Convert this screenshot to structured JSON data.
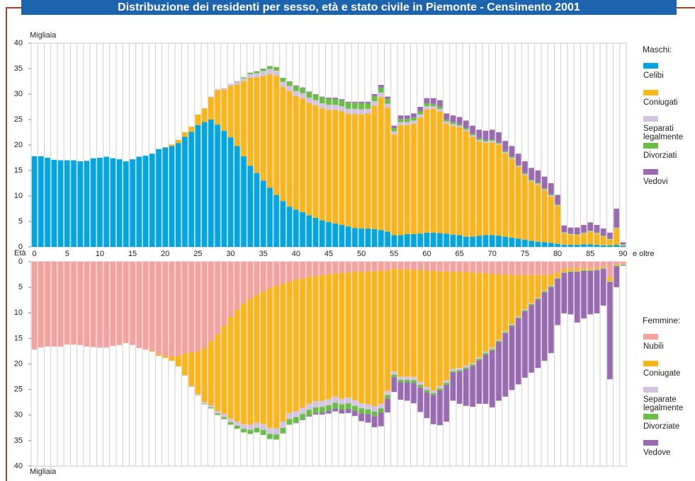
{
  "chart_data": [
    {
      "type": "bar",
      "stacked": true,
      "title": "Distribuzione dei residenti per sesso, età e stato civile in Piemonte - Censimento 2001",
      "y_label": "Migliaia",
      "x_label": "Età",
      "x_label_end": "e oltre",
      "legend_title": "Maschi:",
      "categories": [
        0,
        null,
        null,
        null,
        null,
        5,
        null,
        null,
        null,
        null,
        10,
        null,
        null,
        null,
        null,
        15,
        null,
        null,
        null,
        null,
        20,
        null,
        null,
        null,
        null,
        25,
        null,
        null,
        null,
        null,
        30,
        null,
        null,
        null,
        null,
        35,
        null,
        null,
        null,
        null,
        40,
        null,
        null,
        null,
        null,
        45,
        null,
        null,
        null,
        null,
        50,
        null,
        null,
        null,
        null,
        55,
        null,
        null,
        null,
        null,
        60,
        null,
        null,
        null,
        null,
        65,
        null,
        null,
        null,
        null,
        70,
        null,
        null,
        null,
        null,
        75,
        null,
        null,
        null,
        null,
        80,
        null,
        null,
        null,
        null,
        85,
        null,
        null,
        null,
        null,
        90
      ],
      "ylim": [
        0,
        40
      ],
      "yticks": [
        0,
        5,
        10,
        15,
        20,
        25,
        30,
        35,
        40
      ],
      "y_inverted": false,
      "series": [
        {
          "name": "Celibi",
          "color": "#00a6e0",
          "values": [
            17.8,
            17.8,
            17.5,
            17.1,
            17.0,
            17.0,
            17.0,
            16.8,
            16.9,
            17.4,
            17.5,
            17.7,
            17.4,
            17.2,
            16.8,
            17.2,
            17.7,
            17.9,
            18.3,
            19.2,
            19.5,
            19.8,
            20.4,
            21.6,
            22.6,
            23.9,
            24.5,
            25.0,
            24.0,
            22.8,
            21.5,
            19.8,
            17.8,
            15.9,
            14.5,
            13.0,
            11.6,
            10.2,
            9.0,
            7.9,
            7.3,
            6.8,
            6.2,
            5.7,
            5.2,
            4.9,
            4.6,
            4.3,
            4.0,
            3.7,
            3.6,
            3.6,
            3.5,
            3.3,
            3.0,
            2.3,
            2.3,
            2.5,
            2.5,
            2.6,
            2.8,
            2.8,
            2.7,
            2.6,
            2.4,
            2.3,
            2.0,
            2.0,
            2.2,
            2.3,
            2.3,
            2.2,
            2.0,
            1.8,
            1.6,
            1.4,
            1.2,
            1.0,
            0.9,
            0.8,
            0.6,
            0.4,
            0.4,
            0.4,
            0.5,
            0.5,
            0.4,
            0.3,
            0.3,
            0.4,
            0.2
          ]
        },
        {
          "name": "Coniugati",
          "color": "#fbb616",
          "values": [
            0,
            0,
            0,
            0,
            0,
            0,
            0,
            0,
            0,
            0,
            0,
            0,
            0,
            0,
            0,
            0,
            0,
            0,
            0,
            0,
            0.1,
            0.3,
            0.6,
            0.9,
            1.0,
            2.1,
            2.7,
            4.4,
            6.8,
            8.1,
            10.1,
            12.1,
            14.7,
            17.3,
            18.8,
            20.6,
            22.3,
            23.4,
            22.4,
            22.7,
            22.3,
            22.4,
            22.1,
            22.1,
            22.0,
            22.0,
            22.3,
            22.3,
            22.1,
            22.4,
            22.4,
            22.6,
            24.2,
            26.1,
            24.3,
            19.8,
            21.6,
            21.4,
            21.7,
            22.8,
            24.2,
            24.3,
            23.9,
            21.6,
            21.3,
            21.2,
            20.7,
            19.6,
            18.5,
            18.1,
            18.2,
            17.9,
            16.4,
            15.5,
            14.1,
            12.7,
            11.6,
            11.2,
            10.2,
            9.1,
            7.5,
            2.3,
            2.0,
            1.9,
            2.1,
            2.5,
            2.2,
            1.7,
            1.1,
            3.2,
            0.1
          ]
        },
        {
          "name": "Separati legalmente",
          "color": "#d4c4e1",
          "values": [
            0,
            0,
            0,
            0,
            0,
            0,
            0,
            0,
            0,
            0,
            0,
            0,
            0,
            0,
            0,
            0,
            0,
            0,
            0,
            0,
            0,
            0,
            0,
            0,
            0,
            0,
            0,
            0.1,
            0.2,
            0.3,
            0.4,
            0.5,
            0.6,
            0.7,
            0.8,
            0.9,
            1.0,
            1.0,
            1.0,
            1.0,
            1.0,
            1.0,
            1.0,
            1.0,
            1.0,
            1.0,
            1.0,
            1.0,
            1.0,
            1.0,
            1.0,
            0.9,
            0.9,
            0.9,
            0.8,
            0.6,
            0.6,
            0.6,
            0.6,
            0.6,
            0.6,
            0.5,
            0.5,
            0.4,
            0.4,
            0.3,
            0.3,
            0.3,
            0.3,
            0.3,
            0.3,
            0.2,
            0.2,
            0.2,
            0.2,
            0.2,
            0.2,
            0.2,
            0.2,
            0.2,
            0.1,
            0.1,
            0.1,
            0.1,
            0.1,
            0.1,
            0.1,
            0.1,
            0.1,
            0.1,
            0.1
          ]
        },
        {
          "name": "Divorziati",
          "color": "#6abd45",
          "values": [
            0,
            0,
            0,
            0,
            0,
            0,
            0,
            0,
            0,
            0,
            0,
            0,
            0,
            0,
            0,
            0,
            0,
            0,
            0,
            0,
            0,
            0,
            0,
            0,
            0,
            0,
            0,
            0,
            0,
            0,
            0,
            0.1,
            0.2,
            0.3,
            0.4,
            0.5,
            0.6,
            0.7,
            0.8,
            0.9,
            1.0,
            1.0,
            1.1,
            1.1,
            1.2,
            1.2,
            1.2,
            1.2,
            1.2,
            1.2,
            1.2,
            1.1,
            1.0,
            1.0,
            0.9,
            0.6,
            0.6,
            0.6,
            0.6,
            0.6,
            0.6,
            0.5,
            0.5,
            0.4,
            0.4,
            0.3,
            0.3,
            0.3,
            0.3,
            0.3,
            0.3,
            0.2,
            0.2,
            0.2,
            0.2,
            0.2,
            0.2,
            0.2,
            0.2,
            0.2,
            0.1,
            0.1,
            0.1,
            0.1,
            0.1,
            0.1,
            0.1,
            0.1,
            0.1,
            0.1,
            0.1
          ]
        },
        {
          "name": "Vedovi",
          "color": "#9a6bb1",
          "values": [
            0,
            0,
            0,
            0,
            0,
            0,
            0,
            0,
            0,
            0,
            0,
            0,
            0,
            0,
            0,
            0,
            0,
            0,
            0,
            0,
            0,
            0,
            0,
            0,
            0,
            0,
            0,
            0,
            0,
            0,
            0,
            0,
            0,
            0,
            0,
            0,
            0,
            0,
            0,
            0,
            0.1,
            0.1,
            0.1,
            0.1,
            0.1,
            0.2,
            0.2,
            0.2,
            0.2,
            0.2,
            0.3,
            0.3,
            0.4,
            0.5,
            0.5,
            0.5,
            0.7,
            0.7,
            0.8,
            0.9,
            1.0,
            1.1,
            1.2,
            1.2,
            1.3,
            1.4,
            1.5,
            1.6,
            1.7,
            1.8,
            1.9,
            2.0,
            2.0,
            2.1,
            2.2,
            2.3,
            2.3,
            2.4,
            2.3,
            2.2,
            1.9,
            1.3,
            1.2,
            1.3,
            1.5,
            1.6,
            1.5,
            1.4,
            1.2,
            3.7,
            0.4
          ]
        }
      ]
    },
    {
      "type": "bar",
      "stacked": true,
      "y_label": "Migliaia",
      "legend_title": "Femmine:",
      "ylim": [
        0,
        40
      ],
      "yticks": [
        0,
        5,
        10,
        15,
        20,
        25,
        30,
        35,
        40
      ],
      "y_inverted": true,
      "series": [
        {
          "name": "Nubili",
          "color": "#f4a29d",
          "values": [
            17.2,
            16.8,
            16.6,
            16.6,
            16.6,
            16.2,
            16.2,
            16.3,
            16.6,
            16.7,
            16.8,
            16.8,
            16.5,
            16.3,
            15.9,
            16.3,
            16.9,
            17.2,
            17.5,
            18.1,
            18.4,
            18.5,
            18.4,
            18.0,
            17.7,
            17.6,
            16.9,
            15.6,
            14.2,
            12.6,
            10.8,
            9.4,
            8.2,
            7.2,
            6.5,
            5.8,
            5.2,
            4.7,
            4.3,
            3.9,
            3.5,
            3.3,
            3.0,
            2.8,
            2.6,
            2.5,
            2.3,
            2.2,
            2.1,
            2.0,
            2.0,
            1.9,
            1.9,
            1.8,
            1.7,
            1.4,
            1.5,
            1.5,
            1.6,
            1.6,
            1.8,
            1.8,
            1.9,
            1.9,
            2.0,
            2.0,
            2.0,
            2.1,
            2.2,
            2.3,
            2.4,
            2.5,
            2.5,
            2.6,
            2.6,
            2.6,
            2.6,
            2.6,
            2.6,
            2.5,
            2.1,
            1.4,
            1.3,
            1.3,
            1.3,
            1.3,
            1.2,
            1.0,
            3.0,
            0.5,
            0.4
          ]
        },
        {
          "name": "Coniugate",
          "color": "#fbb616",
          "values": [
            0,
            0,
            0,
            0,
            0,
            0,
            0,
            0,
            0,
            0,
            0,
            0,
            0,
            0,
            0,
            0,
            0,
            0,
            0.1,
            0.3,
            0.4,
            0.9,
            2.1,
            4.2,
            6.6,
            8.3,
            10.6,
            12.5,
            15.0,
            17.2,
            19.9,
            21.9,
            23.6,
            24.7,
            25.0,
            26.0,
            27.3,
            27.9,
            27.0,
            25.7,
            25.7,
            25.3,
            24.8,
            24.5,
            24.6,
            24.4,
            24.1,
            24.6,
            24.5,
            25.1,
            25.7,
            26.0,
            26.4,
            26.0,
            23.6,
            20.1,
            21.0,
            21.0,
            21.0,
            21.9,
            22.7,
            23.4,
            22.4,
            21.3,
            19.0,
            18.8,
            18.3,
            17.7,
            16.5,
            15.3,
            14.4,
            12.8,
            11.1,
            9.6,
            8.1,
            6.7,
            5.5,
            4.4,
            3.0,
            2.1,
            1.0,
            0.6,
            0.5,
            0.5,
            0.3,
            0.3,
            0.3,
            0.2,
            0.8,
            0.2,
            0.1
          ]
        },
        {
          "name": "Separate legalmente",
          "color": "#d4c4e1",
          "values": [
            0,
            0,
            0,
            0,
            0,
            0,
            0,
            0,
            0,
            0,
            0,
            0,
            0,
            0,
            0,
            0,
            0,
            0,
            0,
            0,
            0,
            0,
            0,
            0.1,
            0.2,
            0.3,
            0.3,
            0.4,
            0.5,
            0.6,
            0.7,
            0.8,
            0.9,
            1.0,
            1.0,
            1.1,
            1.2,
            1.2,
            1.2,
            1.2,
            1.2,
            1.2,
            1.2,
            1.2,
            1.2,
            1.2,
            1.2,
            1.1,
            1.1,
            1.1,
            1.0,
            1.0,
            1.0,
            0.9,
            0.8,
            0.6,
            0.6,
            0.6,
            0.6,
            0.6,
            0.6,
            0.5,
            0.5,
            0.5,
            0.4,
            0.4,
            0.4,
            0.3,
            0.3,
            0.3,
            0.3,
            0.2,
            0.2,
            0.2,
            0.2,
            0.2,
            0.2,
            0.2,
            0.2,
            0.2,
            0.1,
            0.1,
            0.1,
            0.1,
            0.1,
            0.1,
            0.1,
            0.1,
            0.1,
            0.1,
            0.1
          ]
        },
        {
          "name": "Divorziate",
          "color": "#6abd45",
          "values": [
            0,
            0,
            0,
            0,
            0,
            0,
            0,
            0,
            0,
            0,
            0,
            0,
            0,
            0,
            0,
            0,
            0,
            0,
            0,
            0,
            0,
            0,
            0,
            0,
            0,
            0,
            0.1,
            0.2,
            0.3,
            0.4,
            0.5,
            0.6,
            0.7,
            0.8,
            0.9,
            1.0,
            1.0,
            1.0,
            1.1,
            1.1,
            1.1,
            1.1,
            1.1,
            1.1,
            1.1,
            1.1,
            1.1,
            1.1,
            1.1,
            1.0,
            1.0,
            0.9,
            0.9,
            0.8,
            0.7,
            0.5,
            0.5,
            0.5,
            0.5,
            0.5,
            0.5,
            0.4,
            0.4,
            0.4,
            0.3,
            0.3,
            0.3,
            0.3,
            0.3,
            0.3,
            0.3,
            0.2,
            0.2,
            0.2,
            0.2,
            0.2,
            0.2,
            0.2,
            0.2,
            0.2,
            0.1,
            0.1,
            0.1,
            0.1,
            0.1,
            0.1,
            0.1,
            0.1,
            0.1,
            0.1,
            0.1
          ]
        },
        {
          "name": "Vedove",
          "color": "#9a6bb1",
          "values": [
            0,
            0,
            0,
            0,
            0,
            0,
            0,
            0,
            0,
            0,
            0,
            0,
            0,
            0,
            0,
            0,
            0,
            0,
            0,
            0,
            0,
            0,
            0,
            0,
            0,
            0,
            0,
            0,
            0,
            0,
            0,
            0,
            0,
            0,
            0,
            0,
            0,
            0,
            0,
            0,
            0.1,
            0.1,
            0.2,
            0.3,
            0.4,
            0.5,
            0.6,
            0.7,
            0.8,
            1.0,
            1.5,
            1.7,
            2.2,
            2.7,
            2.7,
            2.9,
            3.4,
            3.6,
            4.0,
            4.8,
            5.0,
            5.7,
            6.8,
            7.2,
            5.5,
            6.3,
            7.2,
            8.0,
            8.5,
            9.6,
            11.1,
            11.5,
            12.4,
            12.5,
            12.9,
            13.0,
            13.2,
            13.4,
            13.4,
            12.9,
            9.1,
            7.9,
            8.3,
            9.9,
            9.3,
            8.5,
            8.4,
            7.2,
            19.0,
            4.1,
            0.1
          ]
        }
      ]
    }
  ]
}
